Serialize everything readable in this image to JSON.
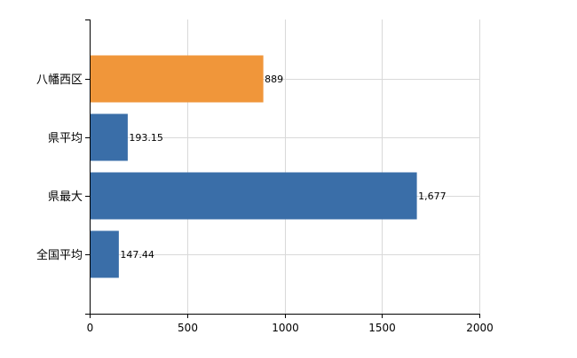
{
  "chart_data": {
    "type": "bar",
    "orientation": "horizontal",
    "categories": [
      "八幡西区",
      "県平均",
      "県最大",
      "全国平均"
    ],
    "values": [
      889,
      193.15,
      1677,
      147.44
    ],
    "value_labels": [
      "889",
      "193.15",
      "1,677",
      "147.44"
    ],
    "bar_colors": [
      "#f0963a",
      "#3a6ea8",
      "#3a6ea8",
      "#3a6ea8"
    ],
    "xlim": [
      0,
      2000
    ],
    "x_ticks": [
      0,
      500,
      1000,
      1500,
      2000
    ],
    "x_tick_labels": [
      "0",
      "500",
      "1000",
      "1500",
      "2000"
    ],
    "grid": true,
    "title": "",
    "xlabel": "",
    "ylabel": ""
  }
}
